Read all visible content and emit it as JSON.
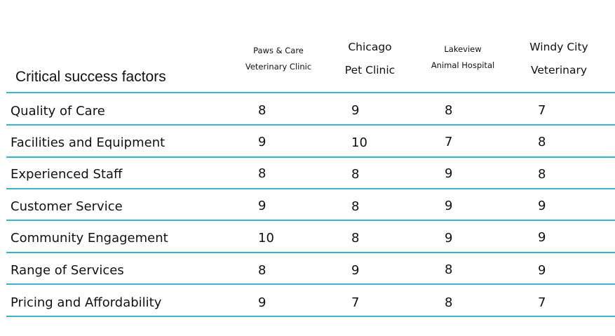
{
  "table": {
    "title": "Critical success factors",
    "columns": [
      {
        "line1": "Paws & Care",
        "line2": "Veterinary Clinic"
      },
      {
        "line1": "Chicago",
        "line2": "Pet Clinic"
      },
      {
        "line1": "Lakeview",
        "line2": "Animal Hospital"
      },
      {
        "line1": "Windy City",
        "line2": "Veterinary"
      }
    ],
    "rows": [
      {
        "label": "Quality of Care",
        "values": [
          "8",
          "9",
          "8",
          "7"
        ]
      },
      {
        "label": "Facilities and Equipment",
        "values": [
          "9",
          "10",
          "7",
          "8"
        ]
      },
      {
        "label": "Experienced Staff",
        "values": [
          "8",
          "8",
          "9",
          "8"
        ]
      },
      {
        "label": "Customer Service",
        "values": [
          "9",
          "8",
          "9",
          "9"
        ]
      },
      {
        "label": "Community Engagement",
        "values": [
          "10",
          "8",
          "9",
          "9"
        ]
      },
      {
        "label": "Range of Services",
        "values": [
          "8",
          "9",
          "8",
          "9"
        ]
      },
      {
        "label": "Pricing and Affordability",
        "values": [
          "9",
          "7",
          "8",
          "7"
        ]
      }
    ]
  },
  "colors": {
    "rule": "#3bb4cf",
    "text": "#111111"
  }
}
